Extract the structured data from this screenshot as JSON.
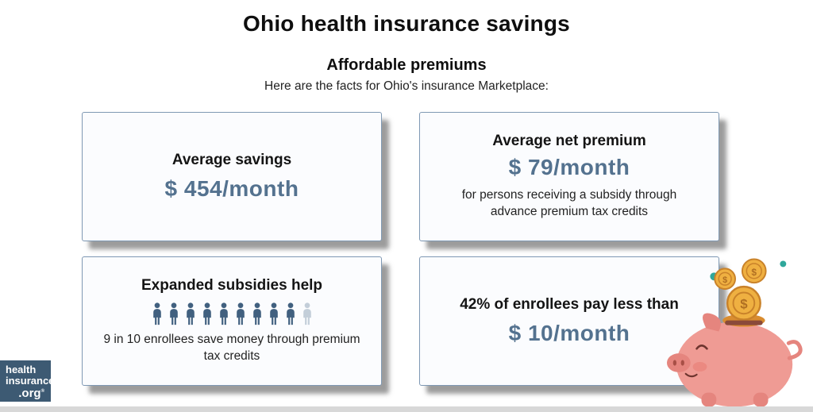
{
  "page": {
    "title": "Ohio health insurance savings",
    "subtitle": "Affordable premiums",
    "intro": "Here are the facts for Ohio's insurance Marketplace:"
  },
  "cards": {
    "average_savings": {
      "heading": "Average savings",
      "value": "$ 454/month"
    },
    "average_net_premium": {
      "heading": "Average net premium",
      "value": "$ 79/month",
      "note": "for persons receiving a subsidy through advance premium tax credits"
    },
    "expanded_subsidies": {
      "heading": "Expanded subsidies help",
      "icons": {
        "total": 10,
        "highlighted": 9
      },
      "note": "9 in 10 enrollees save money through premium tax credits"
    },
    "pay_less_than": {
      "heading": "42% of enrollees pay less than",
      "value": "$ 10/month"
    }
  },
  "logo": {
    "line1": "health",
    "line2": "insurance",
    "line3": ".org",
    "registered": "®"
  },
  "colors": {
    "accent_blue": "#54728f",
    "card_border": "#7e98b3",
    "person_dark": "#41607f",
    "person_light": "#c3ced9",
    "logo_bg": "#3d5a73",
    "pig_pink": "#ef9b94",
    "pig_dark_pink": "#e5857e",
    "coin_gold": "#efb041",
    "coin_outline": "#c9822a",
    "teal_accent": "#2fa79b"
  }
}
